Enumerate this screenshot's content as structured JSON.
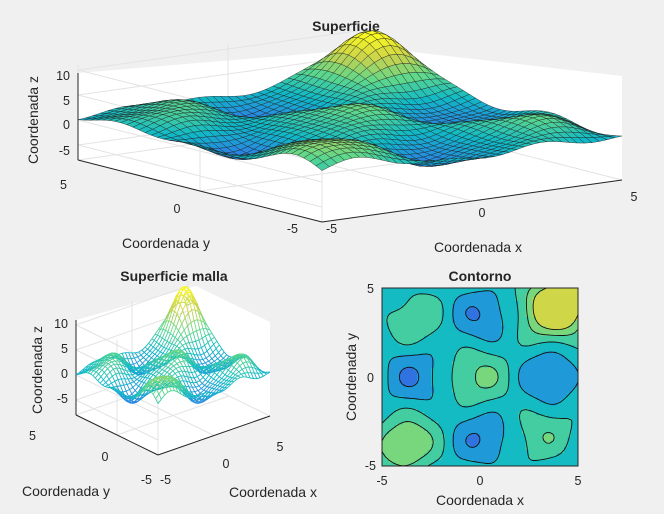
{
  "chart_data": [
    {
      "type": "surface",
      "title": "Superficie",
      "xlabel": "Coordenada x",
      "ylabel": "Coordenada y",
      "zlabel": "Coordenada z",
      "xlim": [
        -5,
        5
      ],
      "ylim": [
        -5,
        5
      ],
      "zlim": [
        -8,
        11
      ],
      "x_ticks": [
        "-5",
        "0",
        "5"
      ],
      "y_ticks": [
        "5",
        "0",
        "-5"
      ],
      "z_ticks": [
        "10",
        "5",
        "0",
        "-5"
      ],
      "z_range": [
        -6,
        11
      ],
      "grid": true,
      "colormap": [
        "#3e26a8",
        "#2e7ce8",
        "#10b9c7",
        "#5fd88b",
        "#c9d24d",
        "#f9f921"
      ]
    },
    {
      "type": "mesh",
      "title": "Superficie malla",
      "xlabel": "Coordenada x",
      "ylabel": "Coordenada y",
      "zlabel": "Coordenada z",
      "x_ticks": [
        "-5",
        "0",
        "5"
      ],
      "y_ticks": [
        "5",
        "0",
        "-5"
      ],
      "z_ticks": [
        "10",
        "5",
        "0",
        "-5"
      ],
      "grid": true
    },
    {
      "type": "contour",
      "title": "Contorno",
      "xlabel": "Coordenada x",
      "ylabel": "Coordenada y",
      "xlim": [
        -5,
        5
      ],
      "ylim": [
        -5,
        5
      ],
      "x_ticks": [
        "-5",
        "0",
        "5"
      ],
      "y_ticks": [
        "5",
        "0",
        "-5"
      ],
      "levels": [
        -6,
        -4,
        -2,
        0,
        2,
        4,
        6
      ]
    }
  ]
}
